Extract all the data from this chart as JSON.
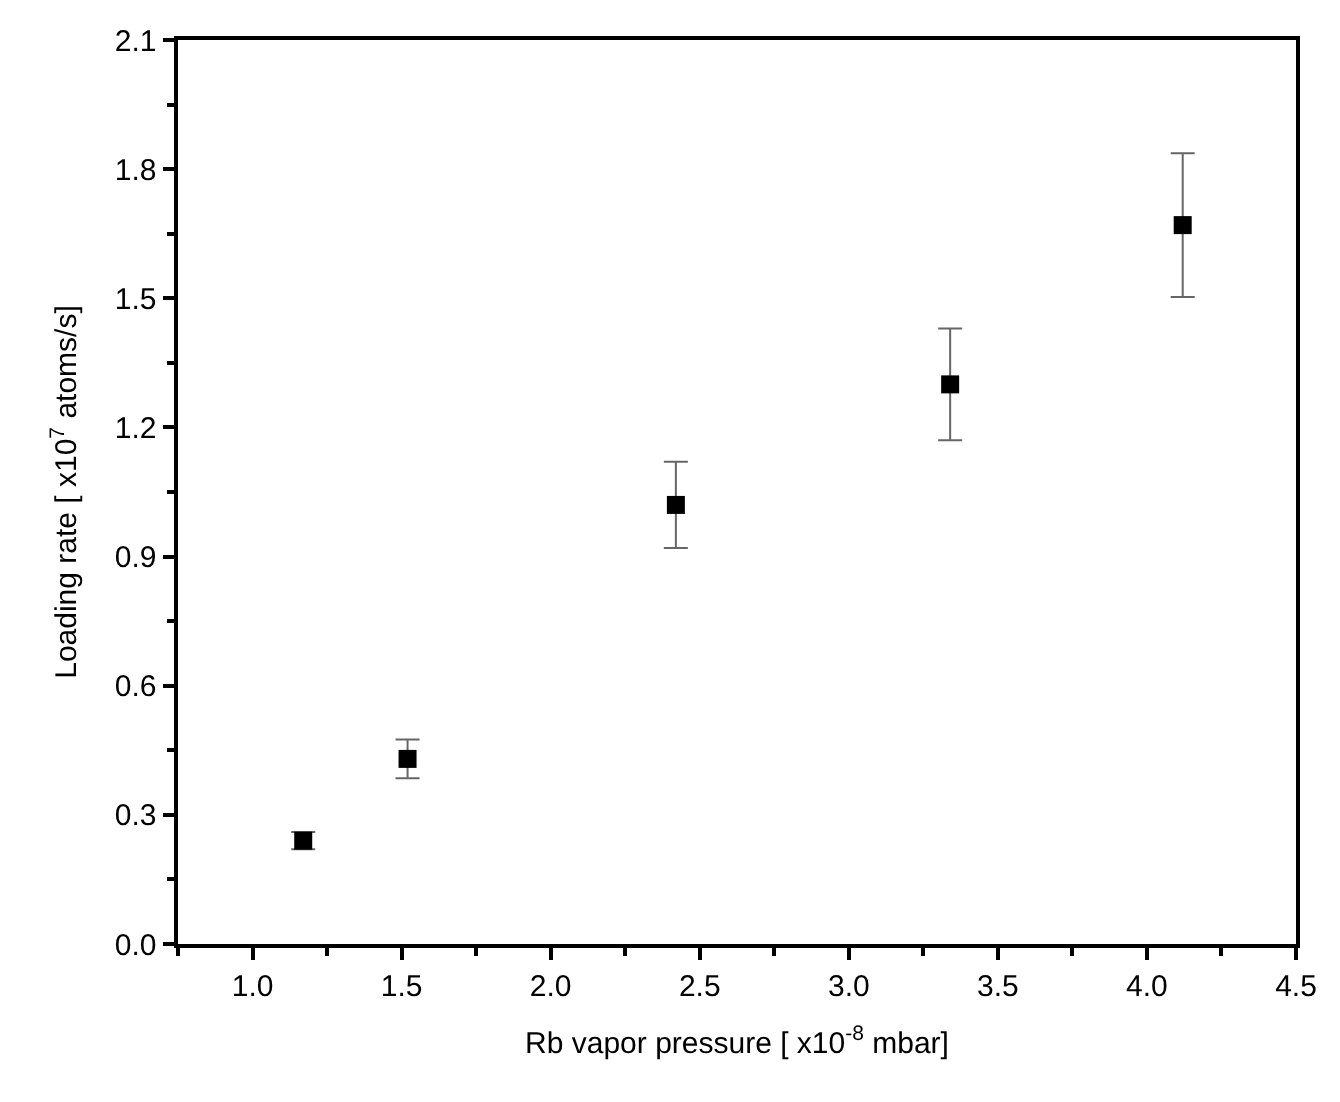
{
  "chart_data": {
    "type": "scatter",
    "xlabel": "Rb vapor pressure [ x10$^{-8}$ mbar]",
    "ylabel": "Loading rate [ x10$^{7}$ atoms/s]",
    "x": [
      1.17,
      1.52,
      2.42,
      3.34,
      4.12
    ],
    "values": [
      0.24,
      0.43,
      1.02,
      1.3,
      1.67
    ],
    "errors": [
      0.02,
      0.045,
      0.1,
      0.13,
      0.167
    ],
    "color": "#000000",
    "marker": "square",
    "xlim": [
      0.75,
      4.5
    ],
    "xticks": [
      {
        "value": 1,
        "label": "1.0"
      },
      1.5,
      {
        "value": 2,
        "label": "2.0"
      },
      2.5,
      {
        "value": 3,
        "label": "3.0"
      },
      3.5,
      {
        "value": 4,
        "label": "4.0"
      },
      4.5
    ],
    "ylim": [
      0,
      2.1
    ],
    "yticks": [
      {
        "value": 0,
        "label": "0.0"
      },
      0.3,
      0.6,
      0.9,
      1.2,
      1.5,
      1.8,
      2.1
    ]
  }
}
